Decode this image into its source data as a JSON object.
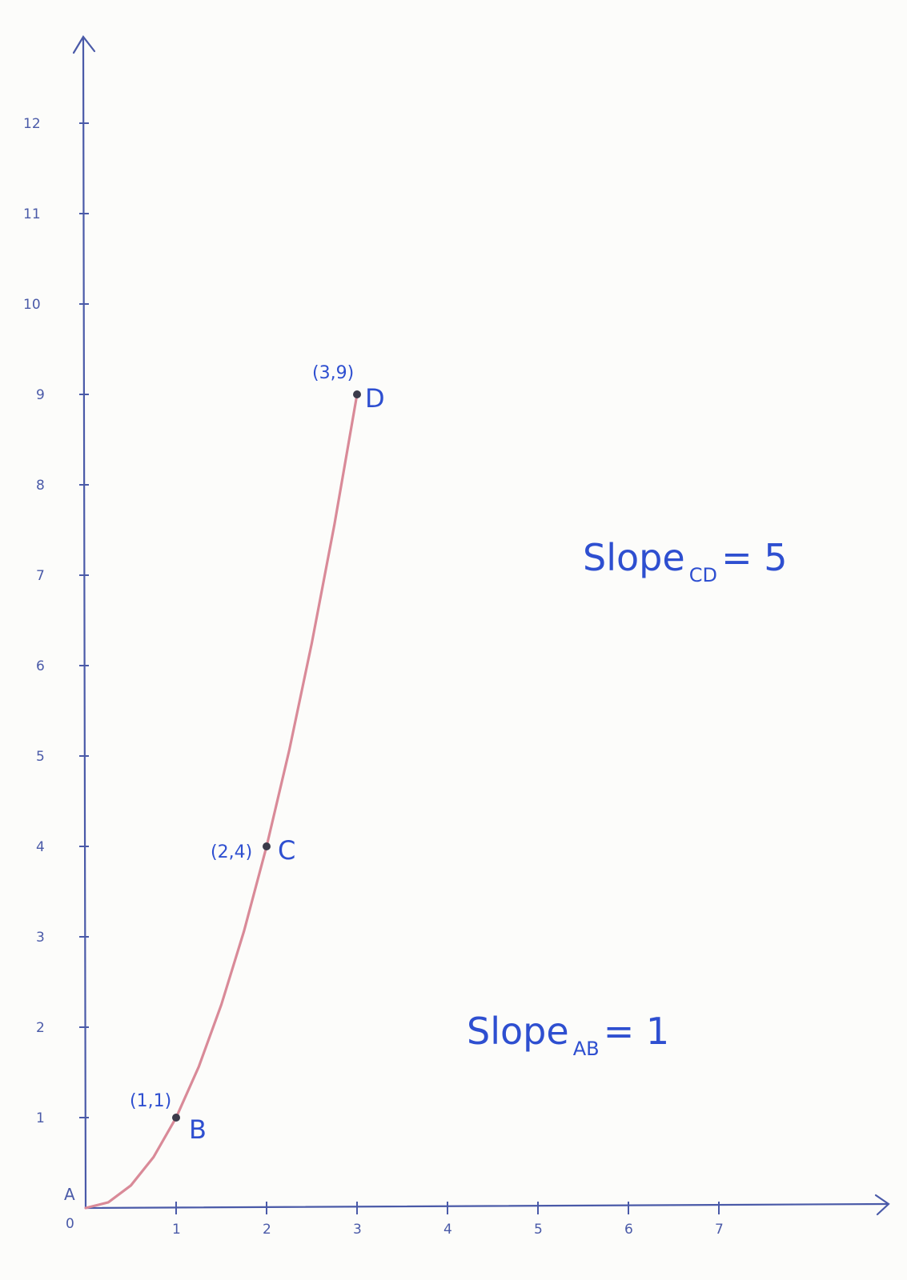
{
  "chart_data": {
    "type": "line",
    "x_ticks": [
      "1",
      "2",
      "3",
      "4",
      "5",
      "6",
      "7"
    ],
    "y_ticks": [
      "1",
      "2",
      "3",
      "4",
      "5",
      "6",
      "7",
      "8",
      "9",
      "10",
      "11",
      "12"
    ],
    "origin_label": "0",
    "origin_point_label": "A",
    "xlim": [
      0,
      8.5
    ],
    "ylim": [
      0,
      12.8
    ],
    "curve": {
      "x": [
        0,
        0.25,
        0.5,
        0.75,
        1,
        1.25,
        1.5,
        1.75,
        2,
        2.25,
        2.5,
        2.75,
        3
      ],
      "y": [
        0,
        0.0625,
        0.25,
        0.5625,
        1,
        1.5625,
        2.25,
        3.0625,
        4,
        5.0625,
        6.25,
        7.5625,
        9
      ]
    },
    "points": [
      {
        "name": "B",
        "coord_label": "(1,1)",
        "x": 1,
        "y": 1
      },
      {
        "name": "C",
        "coord_label": "(2,4)",
        "x": 2,
        "y": 4
      },
      {
        "name": "D",
        "coord_label": "(3,9)",
        "x": 3,
        "y": 9
      }
    ],
    "annotations": [
      {
        "text": "Slope",
        "subscript": "CD",
        "value": "= 5"
      },
      {
        "text": "Slope",
        "subscript": "AB",
        "value": "= 1"
      }
    ],
    "grid": false,
    "colors": {
      "axis": "#4a5aa8",
      "curve": "#d98a98",
      "annotation": "#2e4fd0",
      "point": "#3b3b4a"
    }
  }
}
